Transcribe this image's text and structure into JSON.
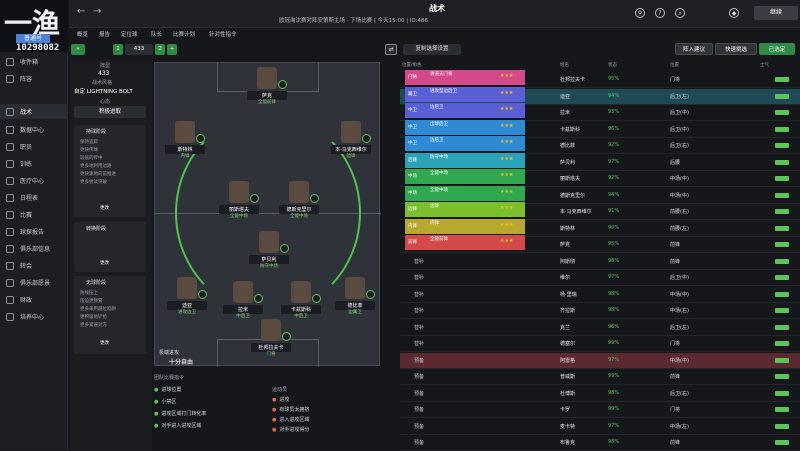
{
  "logo": {
    "mark": "一渔",
    "sub": "普通号",
    "id": "10298082"
  },
  "sidebar": {
    "items": [
      {
        "label": "收件箱"
      },
      {
        "label": "阵容"
      },
      {
        "label": "战术"
      },
      {
        "label": "数据中心"
      },
      {
        "label": "职员"
      },
      {
        "label": "训练"
      },
      {
        "label": "医疗中心"
      },
      {
        "label": "日程表"
      },
      {
        "label": "比赛"
      },
      {
        "label": "球探报告"
      },
      {
        "label": "俱乐部信息"
      },
      {
        "label": "转会"
      },
      {
        "label": "俱乐部愿景"
      },
      {
        "label": "财政"
      },
      {
        "label": "培养中心"
      }
    ]
  },
  "topbar": {
    "title": "战术",
    "subtitle": "欧冠淘汰赛对阵安第斯主场 · 下场比赛 | 今天15:00 | ID:486",
    "continue": "继续"
  },
  "tabs": [
    "概览",
    "报告",
    "定位球",
    "队长",
    "比赛计划",
    "针对性指令"
  ],
  "tacticbar": {
    "slot1": "1",
    "formation": "433",
    "slot2": "2",
    "plus": "+",
    "apply": "复制选择设置",
    "btn1": "阵入建议",
    "btn2": "快速挑选",
    "btn3": "已选定"
  },
  "tpanel": {
    "shape_label": "阵型",
    "shape": "433",
    "style_label": "战术风格",
    "style": "自定 LIGHTNING BOLT",
    "mentality_label": "心态",
    "mentality": "积极进取",
    "card1_title": "持球阶段",
    "card1_lines": [
      "保持追踪",
      "更快传球",
      "较低的传中",
      "更多地利用边路",
      "更快速地向前推进",
      "更多尝试突破"
    ],
    "card2_title": "转换阶段",
    "card3_title": "无球阶段",
    "card3_lines": [
      "防线压上",
      "压迫更频繁",
      "更多采用越位陷阱",
      "更积极地铲抢",
      "更多紧逼对方"
    ],
    "edit": "更改"
  },
  "pitch": {
    "mentality_text": "极端进攻",
    "mentality_sub": "十分自由",
    "players": [
      {
        "name": "萨克",
        "role": "全能前锋"
      },
      {
        "name": "斯特林",
        "role": "内锋"
      },
      {
        "name": "本·马克西维尔",
        "role": "边锋"
      },
      {
        "name": "丽斯塔夫",
        "role": "全能中场"
      },
      {
        "name": "德斯克里尔",
        "role": "全能中场"
      },
      {
        "name": "萨贝利",
        "role": "防守中场"
      },
      {
        "name": "迪亚",
        "role": "进攻边卫"
      },
      {
        "name": "拉米",
        "role": "中后卫"
      },
      {
        "name": "卡兹斯科",
        "role": "中后卫"
      },
      {
        "name": "德比菲",
        "role": "边翼卫"
      },
      {
        "name": "杜邦拉夫卡",
        "role": "门将"
      }
    ]
  },
  "instructions": {
    "title": "团队比赛指令",
    "left": [
      "进球位置",
      "小禁区",
      "进攻区域打门转化率",
      "对手进入进攻区域"
    ],
    "right_title": "运动员",
    "right": [
      "进攻",
      "有球员太拥挤",
      "进入进攻区域",
      "对手进攻得分"
    ]
  },
  "roles": [
    {
      "tag": "门将",
      "name": "清道夫门将",
      "color": "#d24a8a",
      "stars": "★★★"
    },
    {
      "tag": "翼卫",
      "name": "进攻型边后卫",
      "color": "#5a5fd6",
      "stars": "★★★"
    },
    {
      "tag": "中卫",
      "name": "边后卫",
      "color": "#5a5fd6",
      "stars": "★★★"
    },
    {
      "tag": "中卫",
      "name": "出球后卫",
      "color": "#2f8ad3",
      "stars": "★★★"
    },
    {
      "tag": "中卫",
      "name": "边后卫",
      "color": "#2f8ad3",
      "stars": "★★★"
    },
    {
      "tag": "后腰",
      "name": "防守中场",
      "color": "#2aa3b8",
      "stars": "★★★"
    },
    {
      "tag": "中场",
      "name": "全能中场",
      "color": "#2fa84f",
      "stars": "★★★"
    },
    {
      "tag": "中场",
      "name": "全能中场",
      "color": "#2fa84f",
      "stars": "★★★"
    },
    {
      "tag": "边锋",
      "name": "边锋",
      "color": "#7bbf2f",
      "stars": "★★★"
    },
    {
      "tag": "内锋",
      "name": "内锋",
      "color": "#b8a82f",
      "stars": "★★★"
    },
    {
      "tag": "前锋",
      "name": "全能前锋",
      "color": "#d24a4a",
      "stars": "★★★"
    }
  ],
  "squad": {
    "header": [
      "位置/角色",
      "姓名",
      "状态",
      "位置",
      "士气"
    ],
    "rows": [
      {
        "pos": "门将",
        "name": "杜邦拉夫卡",
        "cond": "95%",
        "pos2": "门将"
      },
      {
        "pos": "翼卫",
        "name": "迪亚",
        "cond": "94%",
        "pos2": "后卫(左)"
      },
      {
        "pos": "中卫",
        "name": "拉米",
        "cond": "93%",
        "pos2": "后卫(中)"
      },
      {
        "pos": "中卫",
        "name": "卡兹斯科",
        "cond": "96%",
        "pos2": "后卫(中)"
      },
      {
        "pos": "翼卫",
        "name": "德比菲",
        "cond": "92%",
        "pos2": "后卫(右)"
      },
      {
        "pos": "后腰",
        "name": "萨贝利",
        "cond": "97%",
        "pos2": "后腰"
      },
      {
        "pos": "中场",
        "name": "丽斯塔夫",
        "cond": "92%",
        "pos2": "中场(中)"
      },
      {
        "pos": "中场",
        "name": "德斯克里尔",
        "cond": "94%",
        "pos2": "中场(中)"
      },
      {
        "pos": "边锋",
        "name": "本·马克西维尔",
        "cond": "91%",
        "pos2": "前腰(右)"
      },
      {
        "pos": "内锋",
        "name": "斯特林",
        "cond": "90%",
        "pos2": "前腰(左)"
      },
      {
        "pos": "前锋",
        "name": "萨克",
        "cond": "95%",
        "pos2": "前锋"
      },
      {
        "pos": "替补",
        "name": "阿斯彻",
        "cond": "98%",
        "pos2": "前锋"
      },
      {
        "pos": "替补",
        "name": "维尔",
        "cond": "97%",
        "pos2": "后卫(中)"
      },
      {
        "pos": "替补",
        "name": "杨·里瑞",
        "cond": "98%",
        "pos2": "中场(中)"
      },
      {
        "pos": "替补",
        "name": "齐拉斯",
        "cond": "98%",
        "pos2": "中场(右)"
      },
      {
        "pos": "替补",
        "name": "克兰",
        "cond": "96%",
        "pos2": "后卫(左)"
      },
      {
        "pos": "替补",
        "name": "德塞尔",
        "cond": "99%",
        "pos2": "门将"
      },
      {
        "pos": "预备",
        "name": "阿雷格",
        "cond": "97%",
        "pos2": "中场(中)"
      },
      {
        "pos": "预备",
        "name": "普威斯",
        "cond": "99%",
        "pos2": "前锋"
      },
      {
        "pos": "预备",
        "name": "杜博斯",
        "cond": "98%",
        "pos2": "后卫(右)"
      },
      {
        "pos": "预备",
        "name": "卡罗",
        "cond": "99%",
        "pos2": "门将"
      },
      {
        "pos": "预备",
        "name": "麦卡特",
        "cond": "97%",
        "pos2": "中场(左)"
      },
      {
        "pos": "预备",
        "name": "布鲁克",
        "cond": "98%",
        "pos2": "前锋"
      }
    ]
  }
}
